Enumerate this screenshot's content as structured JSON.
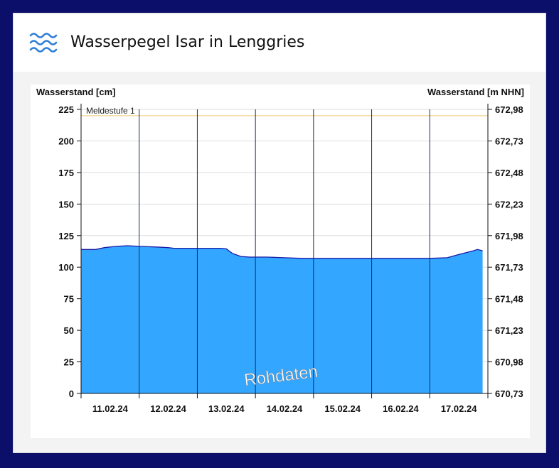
{
  "page": {
    "title": "Wasserpegel Isar in Lenggries",
    "icon": "waves-icon"
  },
  "chart_data": {
    "type": "area",
    "ylabel_left": "Wasserstand [cm]",
    "ylabel_right": "Wasserstand [m NHN]",
    "ylim": [
      0,
      225
    ],
    "yticks_left": [
      "0",
      "25",
      "50",
      "75",
      "100",
      "125",
      "150",
      "175",
      "200",
      "225"
    ],
    "yticks_right": [
      "670,73",
      "670,98",
      "671,23",
      "671,48",
      "671,73",
      "671,98",
      "672,23",
      "672,48",
      "672,73",
      "672,98"
    ],
    "xticks": [
      "11.02.24",
      "12.02.24",
      "13.02.24",
      "14.02.24",
      "15.02.24",
      "16.02.24",
      "17.02.24"
    ],
    "x_days": [
      0,
      7
    ],
    "threshold": {
      "label": "Meldestufe 1",
      "value": 220,
      "color": "#f2d89a"
    },
    "watermark": "Rohdaten",
    "series": [
      {
        "color": "#33a6ff",
        "line_color": "#1a1aa8",
        "x": [
          0,
          0.25,
          0.4,
          0.6,
          0.8,
          1.0,
          1.3,
          1.5,
          1.6,
          2.0,
          2.4,
          2.5,
          2.6,
          2.75,
          2.9,
          3.2,
          3.5,
          3.8,
          4.0,
          4.5,
          4.8,
          5.0,
          5.5,
          5.8,
          6.0,
          6.3,
          6.5,
          6.75,
          6.82,
          6.91
        ],
        "values": [
          114,
          114,
          115.5,
          116.5,
          117,
          116.5,
          116,
          115.5,
          115,
          115,
          115,
          114.5,
          111,
          108.5,
          108,
          108,
          107.5,
          107,
          107,
          107,
          107,
          107,
          107,
          107,
          107,
          107.5,
          110,
          113,
          114,
          113
        ]
      }
    ]
  }
}
